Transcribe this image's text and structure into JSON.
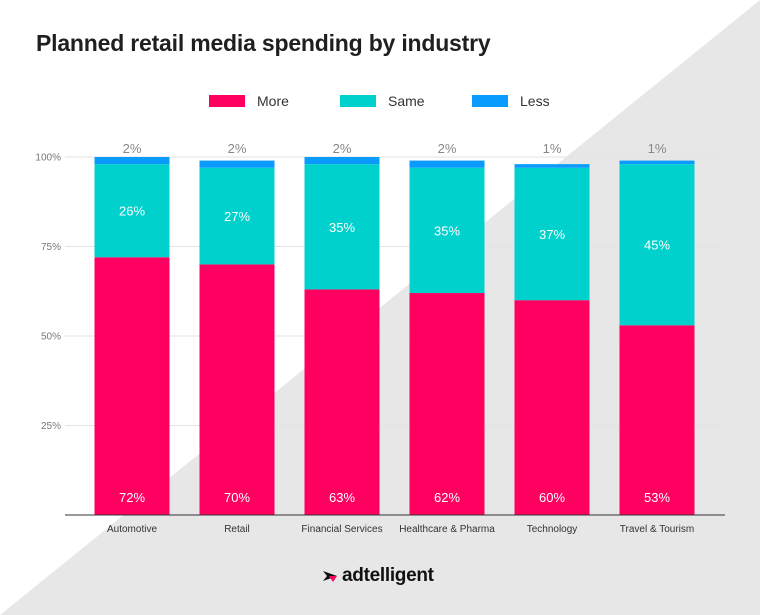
{
  "colors": {
    "more": "#ff0060",
    "same": "#00d1cc",
    "less": "#0a9bff"
  },
  "brand": {
    "name": "adtelligent"
  },
  "chart_data": {
    "type": "bar",
    "stacked": true,
    "title": "Planned retail media spending by industry",
    "xlabel": "",
    "ylabel": "",
    "ylim": [
      0,
      100
    ],
    "yticks": [
      "25%",
      "50%",
      "75%",
      "100%"
    ],
    "ytick_values": [
      25,
      50,
      75,
      100
    ],
    "grid": true,
    "legend_position": "top-center",
    "categories": [
      "Automotive",
      "Retail",
      "Financial Services",
      "Healthcare & Pharma",
      "Technology",
      "Travel & Tourism"
    ],
    "series": [
      {
        "name": "More",
        "values": [
          72,
          70,
          63,
          62,
          60,
          53
        ],
        "labels": [
          "72%",
          "70%",
          "63%",
          "62%",
          "60%",
          "53%"
        ]
      },
      {
        "name": "Same",
        "values": [
          26,
          27,
          35,
          35,
          37,
          45
        ],
        "labels": [
          "26%",
          "27%",
          "35%",
          "35%",
          "37%",
          "45%"
        ]
      },
      {
        "name": "Less",
        "values": [
          2,
          2,
          2,
          2,
          1,
          1
        ],
        "labels": [
          "2%",
          "2%",
          "2%",
          "2%",
          "1%",
          "1%"
        ]
      }
    ]
  }
}
